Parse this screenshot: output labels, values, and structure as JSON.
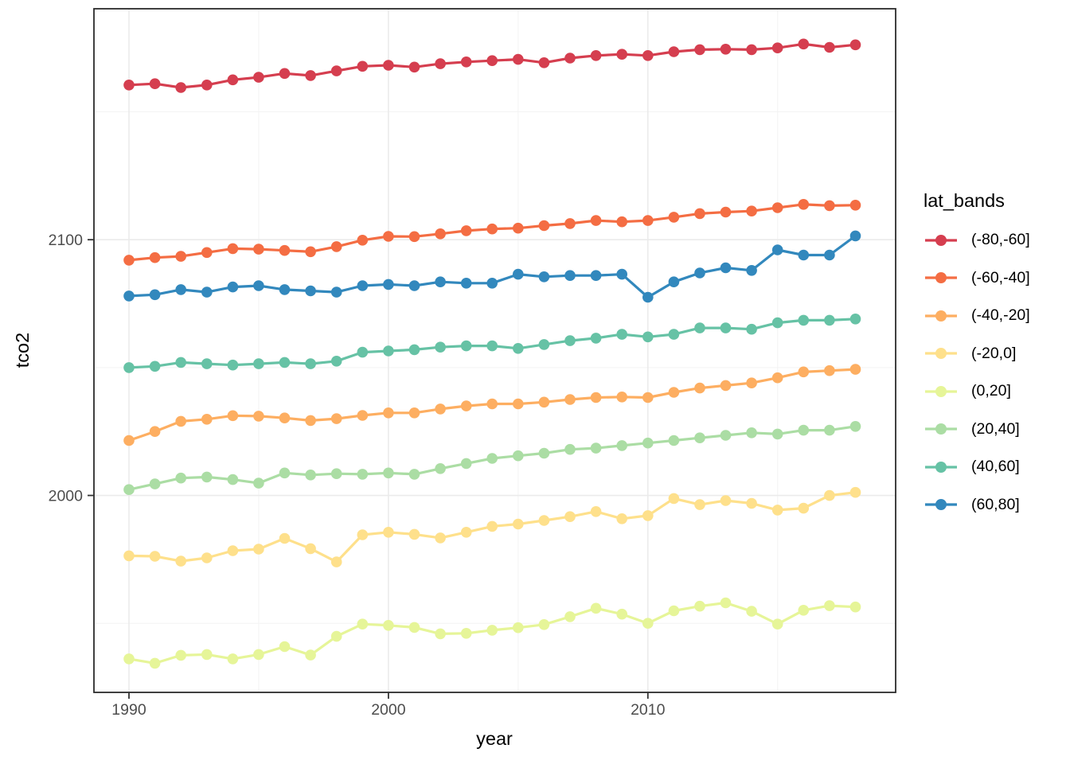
{
  "chart_data": {
    "type": "line",
    "title": "",
    "xlabel": "year",
    "ylabel": "tco2",
    "legend_title": "lat_bands",
    "legend_position": "right",
    "grid": true,
    "background": "#ffffff",
    "panel_border_color": "#2b2b2b",
    "grid_major_color": "#ebebeb",
    "grid_minor_color": "#f3f3f3",
    "tick_color": "#333333",
    "tick_label_color": "#4d4d4d",
    "xlim": [
      1988.65,
      2019.55
    ],
    "ylim": [
      1923,
      2190.3
    ],
    "x_major_ticks": [
      1990,
      2000,
      2010
    ],
    "x_minor_ticks": [
      1995,
      2005,
      2015
    ],
    "y_major_ticks": [
      2000,
      2100
    ],
    "y_minor_ticks": [
      1950,
      2050,
      2150
    ],
    "x_tick_labels": [
      "1990",
      "2000",
      "2010"
    ],
    "y_tick_labels": [
      "2000",
      "2100"
    ],
    "x": [
      1990,
      1991,
      1992,
      1993,
      1994,
      1995,
      1996,
      1997,
      1998,
      1999,
      2000,
      2001,
      2002,
      2003,
      2004,
      2005,
      2006,
      2007,
      2008,
      2009,
      2010,
      2011,
      2012,
      2013,
      2014,
      2015,
      2016,
      2017,
      2018
    ],
    "series": [
      {
        "name": "(-80,-60]",
        "color": "#D53E4F",
        "values": [
          2160.5,
          2161.0,
          2159.5,
          2160.5,
          2162.5,
          2163.5,
          2165.0,
          2164.2,
          2166.0,
          2167.8,
          2168.2,
          2167.5,
          2168.8,
          2169.5,
          2170.0,
          2170.5,
          2169.2,
          2171.0,
          2172.0,
          2172.5,
          2172.0,
          2173.5,
          2174.3,
          2174.5,
          2174.3,
          2175.0,
          2176.5,
          2175.2,
          2176.2
        ]
      },
      {
        "name": "(-60,-40]",
        "color": "#F46D43",
        "values": [
          2092.0,
          2093.0,
          2093.5,
          2095.0,
          2096.5,
          2096.3,
          2095.8,
          2095.3,
          2097.3,
          2099.8,
          2101.3,
          2101.2,
          2102.3,
          2103.5,
          2104.2,
          2104.5,
          2105.5,
          2106.3,
          2107.5,
          2107.0,
          2107.5,
          2108.8,
          2110.2,
          2110.8,
          2111.2,
          2112.5,
          2113.8,
          2113.3,
          2113.5
        ]
      },
      {
        "name": "(-40,-20]",
        "color": "#FDAE61",
        "values": [
          2021.5,
          2025.0,
          2029.0,
          2029.8,
          2031.2,
          2031.0,
          2030.3,
          2029.3,
          2030.0,
          2031.3,
          2032.3,
          2032.3,
          2033.8,
          2035.0,
          2035.8,
          2035.8,
          2036.5,
          2037.5,
          2038.3,
          2038.5,
          2038.3,
          2040.3,
          2042.0,
          2043.0,
          2044.0,
          2046.0,
          2048.3,
          2048.8,
          2049.3
        ]
      },
      {
        "name": "(-20,0]",
        "color": "#FEE08B",
        "values": [
          1976.4,
          1976.2,
          1974.3,
          1975.6,
          1978.4,
          1979.0,
          1983.2,
          1979.2,
          1974.0,
          1984.6,
          1985.6,
          1984.8,
          1983.4,
          1985.6,
          1987.9,
          1988.8,
          1990.2,
          1991.7,
          1993.7,
          1990.9,
          1992.1,
          1998.8,
          1996.4,
          1998.0,
          1996.9,
          1994.3,
          1995.0,
          2000.0,
          2001.2
        ]
      },
      {
        "name": "(0,20]",
        "color": "#E6F598",
        "values": [
          1936.1,
          1934.4,
          1937.5,
          1937.8,
          1936.1,
          1937.8,
          1940.9,
          1937.6,
          1944.9,
          1949.7,
          1949.2,
          1948.4,
          1945.9,
          1946.1,
          1947.3,
          1948.3,
          1949.5,
          1952.6,
          1955.9,
          1953.6,
          1950.0,
          1954.9,
          1956.7,
          1958.0,
          1954.7,
          1949.7,
          1955.1,
          1956.9,
          1956.4
        ]
      },
      {
        "name": "(20,40]",
        "color": "#ABDDA4",
        "values": [
          2002.3,
          2004.5,
          2006.8,
          2007.2,
          2006.2,
          2004.8,
          2008.8,
          2008.0,
          2008.5,
          2008.3,
          2008.8,
          2008.3,
          2010.5,
          2012.5,
          2014.5,
          2015.5,
          2016.5,
          2018.0,
          2018.5,
          2019.5,
          2020.5,
          2021.5,
          2022.5,
          2023.5,
          2024.5,
          2024.0,
          2025.5,
          2025.5,
          2027.0
        ]
      },
      {
        "name": "(40,60]",
        "color": "#66C2A5",
        "values": [
          2050.0,
          2050.5,
          2052.0,
          2051.5,
          2051.0,
          2051.5,
          2052.0,
          2051.5,
          2052.5,
          2056.0,
          2056.5,
          2057.0,
          2058.0,
          2058.5,
          2058.5,
          2057.5,
          2059.0,
          2060.5,
          2061.5,
          2063.0,
          2062.0,
          2063.0,
          2065.5,
          2065.5,
          2065.0,
          2067.5,
          2068.5,
          2068.5,
          2069.0
        ]
      },
      {
        "name": "(60,80]",
        "color": "#3288BD",
        "values": [
          2078.0,
          2078.5,
          2080.5,
          2079.5,
          2081.5,
          2082.0,
          2080.5,
          2080.0,
          2079.5,
          2082.0,
          2082.5,
          2082.0,
          2083.5,
          2083.0,
          2083.0,
          2086.5,
          2085.5,
          2086.0,
          2086.0,
          2086.5,
          2077.5,
          2083.5,
          2087.0,
          2089.0,
          2088.0,
          2096.0,
          2094.0,
          2094.0,
          2101.5
        ]
      }
    ]
  }
}
